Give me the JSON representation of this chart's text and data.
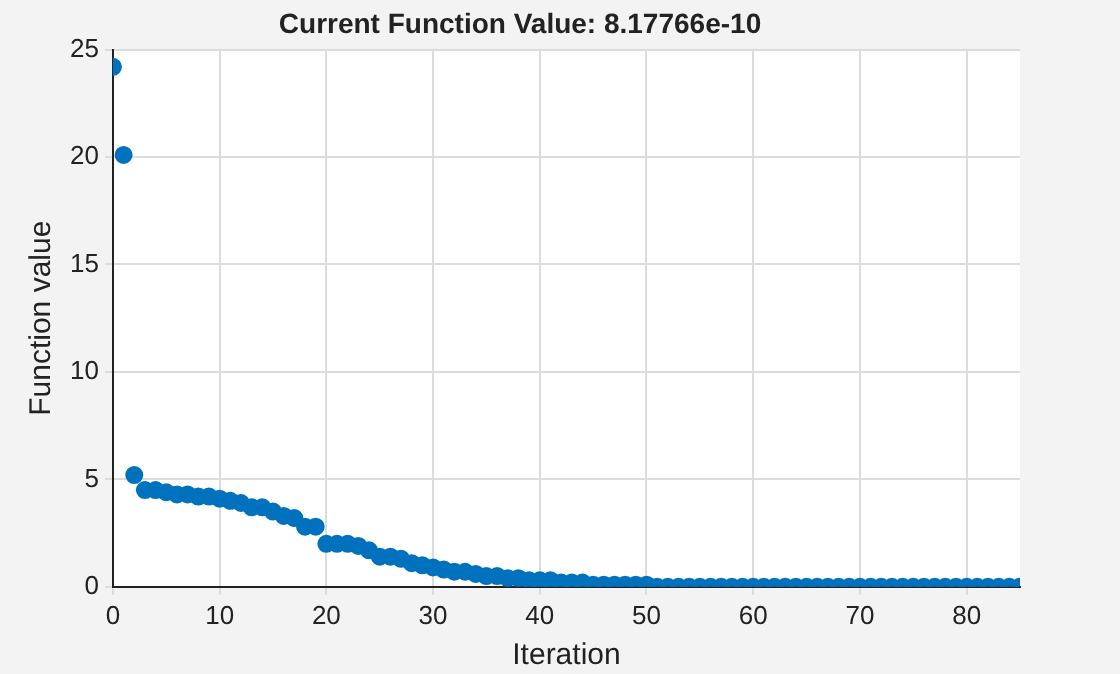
{
  "chart_data": {
    "type": "scatter",
    "title": "Current Function Value: 8.17766e-10",
    "xlabel": "Iteration",
    "ylabel": "Function value",
    "x": [
      0,
      1,
      2,
      3,
      4,
      5,
      6,
      7,
      8,
      9,
      10,
      11,
      12,
      13,
      14,
      15,
      16,
      17,
      18,
      19,
      20,
      21,
      22,
      23,
      24,
      25,
      26,
      27,
      28,
      29,
      30,
      31,
      32,
      33,
      34,
      35,
      36,
      37,
      38,
      39,
      40,
      41,
      42,
      43,
      44,
      45,
      46,
      47,
      48,
      49,
      50,
      51,
      52,
      53,
      54,
      55,
      56,
      57,
      58,
      59,
      60,
      61,
      62,
      63,
      64,
      65,
      66,
      67,
      68,
      69,
      70,
      71,
      72,
      73,
      74,
      75,
      76,
      77,
      78,
      79,
      80,
      81,
      82,
      83,
      84,
      85
    ],
    "series": [
      {
        "color": "#0072bd",
        "values": [
          24.2,
          20.1,
          5.2,
          4.5,
          4.5,
          4.4,
          4.3,
          4.3,
          4.2,
          4.2,
          4.1,
          4.0,
          3.9,
          3.7,
          3.7,
          3.5,
          3.3,
          3.2,
          2.8,
          2.8,
          2.0,
          2.0,
          2.0,
          1.9,
          1.7,
          1.4,
          1.4,
          1.3,
          1.1,
          1.0,
          0.9,
          0.8,
          0.7,
          0.7,
          0.6,
          0.5,
          0.5,
          0.4,
          0.4,
          0.3,
          0.3,
          0.3,
          0.2,
          0.2,
          0.2,
          0.1,
          0.1,
          0.1,
          0.1,
          0.1,
          0.1,
          0,
          0,
          0,
          0,
          0,
          0,
          0,
          0,
          0,
          0,
          0,
          0,
          0,
          0,
          0,
          0,
          0,
          0,
          0,
          0,
          0,
          0,
          0,
          0,
          0,
          0,
          0,
          0,
          0,
          0,
          0,
          0,
          0,
          0,
          0
        ]
      }
    ],
    "xlim": [
      0,
      85
    ],
    "xticks": [
      0,
      10,
      20,
      30,
      40,
      50,
      60,
      70,
      80
    ],
    "ylim": [
      0,
      25
    ],
    "yticks": [
      0,
      5,
      10,
      15,
      20,
      25
    ],
    "grid": true,
    "legend": false,
    "marker": "circle"
  }
}
